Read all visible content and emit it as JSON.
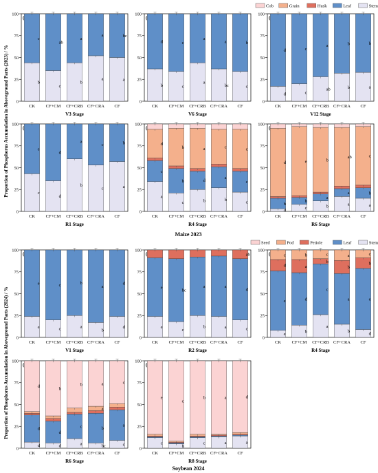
{
  "figure": {
    "ylabel_top": "Proportion of Phosphorus Accumulation in Aboveground Parts (2023) / %",
    "ylabel_bottom": "Proportion of Phosphorus Accumulation in Aboveground Parts (2024) / %",
    "caption_top": "Maize 2023",
    "caption_bottom": "Soybean 2024"
  },
  "colors": {
    "Cob": "#fbd3d3",
    "Grain": "#f4b08c",
    "Husk": "#de6f5e",
    "Leaf": "#5f8fc8",
    "Stem": "#e4e3f2",
    "Seed": "#fbd3d3",
    "Pod": "#f4b08c",
    "Petiole": "#de6f5e"
  },
  "legends": {
    "maize": [
      "Cob",
      "Grain",
      "Husk",
      "Leaf",
      "Stem"
    ],
    "soybean": [
      "Seed",
      "Pod",
      "Petiole",
      "Leaf",
      "Stem"
    ]
  },
  "chart_data": [
    {
      "panel": "(a)",
      "stage": "V3 Stage",
      "type": "bar",
      "categories": [
        "CK",
        "CF+CM",
        "CF+CRB",
        "CF+CRA",
        "CF"
      ],
      "ylim": [
        0,
        100
      ],
      "yticks": [
        0,
        25,
        50,
        75,
        100
      ],
      "series": [
        {
          "name": "Stem",
          "values": [
            44,
            35,
            44,
            52,
            50
          ],
          "letters": [
            "b",
            "c",
            "b",
            "a",
            "a"
          ]
        },
        {
          "name": "Leaf",
          "values": [
            56,
            65,
            56,
            48,
            50
          ],
          "letters": [
            "c",
            "ab",
            "a",
            "a",
            "bc"
          ]
        }
      ]
    },
    {
      "panel": "(b)",
      "stage": "V6 Stage",
      "type": "bar",
      "categories": [
        "CK",
        "CF+CM",
        "CF+CRB",
        "CF+CRA",
        "CF"
      ],
      "ylim": [
        0,
        100
      ],
      "yticks": [
        0,
        25,
        50,
        75,
        100
      ],
      "series": [
        {
          "name": "Stem",
          "values": [
            37,
            34,
            44,
            37,
            34
          ],
          "letters": [
            "b",
            "c",
            "a",
            "bc",
            "c"
          ]
        },
        {
          "name": "Leaf",
          "values": [
            63,
            66,
            56,
            63,
            66
          ],
          "letters": [
            "d",
            "c",
            "a",
            "a",
            "b"
          ]
        }
      ]
    },
    {
      "panel": "(c)",
      "stage": "V12 Stage",
      "type": "bar",
      "categories": [
        "CK",
        "CF+CM",
        "CF+CRB",
        "CF+CRA",
        "CF"
      ],
      "ylim": [
        0,
        100
      ],
      "yticks": [
        0,
        25,
        50,
        75,
        100
      ],
      "series": [
        {
          "name": "Stem",
          "values": [
            17,
            20,
            28,
            32,
            33
          ],
          "letters": [
            "d",
            "c",
            "ab",
            "b",
            "a"
          ]
        },
        {
          "name": "Leaf",
          "values": [
            83,
            80,
            72,
            68,
            67
          ],
          "letters": [
            "d",
            "c",
            "a",
            "b",
            "b"
          ]
        }
      ]
    },
    {
      "panel": "(d)",
      "stage": "R1 Stage",
      "type": "bar",
      "categories": [
        "CK",
        "CF+CM",
        "CF+CRB",
        "CF+CRA",
        "CF"
      ],
      "ylim": [
        0,
        100
      ],
      "yticks": [
        0,
        25,
        50,
        75,
        100
      ],
      "series": [
        {
          "name": "Stem",
          "values": [
            43,
            35,
            60,
            53,
            57
          ],
          "letters": [
            "c",
            "d",
            "b",
            "c",
            "a"
          ]
        },
        {
          "name": "Leaf",
          "values": [
            57,
            65,
            40,
            47,
            43
          ],
          "letters": [
            "e",
            "d",
            "a",
            "c",
            "b"
          ]
        }
      ]
    },
    {
      "panel": "(e)",
      "stage": "R4 Stage",
      "type": "bar",
      "categories": [
        "CK",
        "CF+CM",
        "CF+CRB",
        "CF+CRA",
        "CF"
      ],
      "ylim": [
        0,
        100
      ],
      "yticks": [
        0,
        25,
        50,
        75,
        100
      ],
      "series": [
        {
          "name": "Stem",
          "values": [
            34,
            21,
            25,
            27,
            22
          ],
          "letters": [
            "a",
            "c",
            "b",
            "b",
            "c"
          ]
        },
        {
          "name": "Leaf",
          "values": [
            24,
            28,
            21,
            24,
            24
          ],
          "letters": [
            "c",
            "b",
            "d",
            "a",
            "c"
          ]
        },
        {
          "name": "Husk",
          "values": [
            3,
            3,
            3,
            3,
            3
          ],
          "letters": [
            "",
            "",
            "",
            "",
            ""
          ]
        },
        {
          "name": "Grain",
          "values": [
            33,
            43,
            46,
            40,
            45
          ],
          "letters": [
            "d",
            "b",
            "a",
            "c",
            "c"
          ]
        },
        {
          "name": "Cob",
          "values": [
            6,
            5,
            5,
            6,
            6
          ],
          "letters": [
            "",
            "",
            "",
            "",
            ""
          ]
        }
      ]
    },
    {
      "panel": "(f)",
      "stage": "R6 Stage",
      "type": "bar",
      "categories": [
        "CK",
        "CF+CM",
        "CF+CRB",
        "CF+CRA",
        "CF"
      ],
      "ylim": [
        0,
        100
      ],
      "yticks": [
        0,
        25,
        50,
        75,
        100
      ],
      "series": [
        {
          "name": "Stem",
          "values": [
            3,
            8,
            12,
            17,
            15
          ],
          "letters": [
            "d",
            "c",
            "b",
            "a",
            "a"
          ]
        },
        {
          "name": "Leaf",
          "values": [
            12,
            8,
            8,
            9,
            12
          ],
          "letters": [
            "b",
            "b",
            "a",
            "a",
            "b"
          ]
        },
        {
          "name": "Husk",
          "values": [
            2,
            2,
            2,
            3,
            3
          ],
          "letters": [
            "",
            "",
            "",
            "",
            ""
          ]
        },
        {
          "name": "Grain",
          "values": [
            78,
            79,
            74,
            67,
            67
          ],
          "letters": [
            "d",
            "e",
            "b",
            "ab",
            "c"
          ]
        },
        {
          "name": "Cob",
          "values": [
            5,
            3,
            4,
            4,
            3
          ],
          "letters": [
            "",
            "",
            "",
            "",
            ""
          ]
        }
      ]
    },
    {
      "panel": "(g)",
      "stage": "V1 Stage",
      "type": "bar",
      "categories": [
        "CK",
        "CF+CM",
        "CF+CRB",
        "CF+CRA",
        "CF"
      ],
      "ylim": [
        0,
        100
      ],
      "yticks": [
        0,
        25,
        50,
        75,
        100
      ],
      "series": [
        {
          "name": "Stem",
          "values": [
            24,
            20,
            25,
            17,
            24
          ],
          "letters": [
            "e",
            "c",
            "a",
            "b",
            "d"
          ]
        },
        {
          "name": "Leaf",
          "values": [
            76,
            80,
            75,
            83,
            76
          ],
          "letters": [
            "e",
            "c",
            "b",
            "a",
            "d"
          ]
        }
      ]
    },
    {
      "panel": "(h)",
      "stage": "R2 Stage",
      "type": "bar",
      "categories": [
        "CK",
        "CF+CM",
        "CF+CRB",
        "CF+CRA",
        "CF"
      ],
      "ylim": [
        0,
        100
      ],
      "yticks": [
        0,
        25,
        50,
        75,
        100
      ],
      "series": [
        {
          "name": "Stem",
          "values": [
            24,
            18,
            25,
            24,
            20
          ],
          "letters": [
            "e",
            "c",
            "b",
            "a",
            "c"
          ]
        },
        {
          "name": "Leaf",
          "values": [
            67,
            72,
            67,
            69,
            70
          ],
          "letters": [
            "e",
            "bc",
            "a",
            "a",
            "d"
          ]
        },
        {
          "name": "Petiole",
          "values": [
            9,
            10,
            8,
            7,
            10
          ],
          "letters": [
            "",
            "",
            "",
            "",
            "ab"
          ]
        }
      ]
    },
    {
      "panel": "(i)",
      "stage": "R4 Stage",
      "type": "bar",
      "categories": [
        "CK",
        "CF+CM",
        "CF+CRB",
        "CF+CRA",
        "CF"
      ],
      "ylim": [
        0,
        100
      ],
      "yticks": [
        0,
        25,
        50,
        75,
        100
      ],
      "series": [
        {
          "name": "Stem",
          "values": [
            8,
            14,
            26,
            15,
            9
          ],
          "letters": [
            "e",
            "b",
            "a",
            "b",
            "d"
          ]
        },
        {
          "name": "Leaf",
          "values": [
            68,
            60,
            58,
            58,
            70
          ],
          "letters": [
            "e",
            "d",
            "c",
            "a",
            "e"
          ]
        },
        {
          "name": "Petiole",
          "values": [
            13,
            15,
            6,
            15,
            12
          ],
          "letters": [
            "d",
            "a",
            "b",
            "b",
            "b"
          ]
        },
        {
          "name": "Pod",
          "values": [
            11,
            11,
            10,
            12,
            9
          ],
          "letters": [
            "c",
            "b",
            "c",
            "a",
            "c"
          ]
        }
      ]
    },
    {
      "panel": "(j)",
      "stage": "R6 Stage",
      "type": "bar",
      "categories": [
        "CK",
        "CF+CM",
        "CF+CRB",
        "CF+CRA",
        "CF"
      ],
      "ylim": [
        0,
        100
      ],
      "yticks": [
        0,
        25,
        50,
        75,
        100
      ],
      "series": [
        {
          "name": "Stem",
          "values": [
            7,
            6,
            11,
            6,
            9
          ],
          "letters": [
            "d",
            "d",
            "a",
            "bc",
            "c"
          ]
        },
        {
          "name": "Leaf",
          "values": [
            31,
            25,
            28,
            34,
            35
          ],
          "letters": [
            "d",
            "d",
            "c",
            "b",
            "a"
          ]
        },
        {
          "name": "Petiole",
          "values": [
            2,
            3,
            2,
            3,
            3
          ],
          "letters": [
            "",
            "",
            "",
            "",
            ""
          ]
        },
        {
          "name": "Pod",
          "values": [
            2,
            3,
            5,
            5,
            4
          ],
          "letters": [
            "",
            "",
            "",
            "a",
            ""
          ]
        },
        {
          "name": "Seed",
          "values": [
            58,
            63,
            54,
            52,
            49
          ],
          "letters": [
            "d",
            "b",
            "b",
            "a",
            "c"
          ]
        }
      ]
    },
    {
      "panel": "(k)",
      "stage": "R8 Stage",
      "type": "bar",
      "categories": [
        "CK",
        "CF+CM",
        "CF+CRB",
        "CF+CRA",
        "CF"
      ],
      "ylim": [
        0,
        100
      ],
      "yticks": [
        0,
        25,
        50,
        75,
        100
      ],
      "series": [
        {
          "name": "Stem",
          "values": [
            12,
            5,
            12,
            13,
            14
          ],
          "letters": [
            "c",
            "b",
            "c",
            "a",
            "a"
          ]
        },
        {
          "name": "Leaf",
          "values": [
            1,
            1,
            1,
            1,
            1
          ],
          "letters": [
            "",
            "",
            "",
            "",
            ""
          ]
        },
        {
          "name": "Petiole",
          "values": [
            1,
            1,
            1,
            1,
            1
          ],
          "letters": [
            "",
            "",
            "",
            "",
            ""
          ]
        },
        {
          "name": "Pod",
          "values": [
            2,
            1,
            2,
            1,
            2
          ],
          "letters": [
            "",
            "",
            "",
            "",
            ""
          ]
        },
        {
          "name": "Seed",
          "values": [
            84,
            92,
            84,
            84,
            82
          ],
          "letters": [
            "e",
            "c",
            "b",
            "a",
            "d"
          ]
        }
      ]
    }
  ]
}
